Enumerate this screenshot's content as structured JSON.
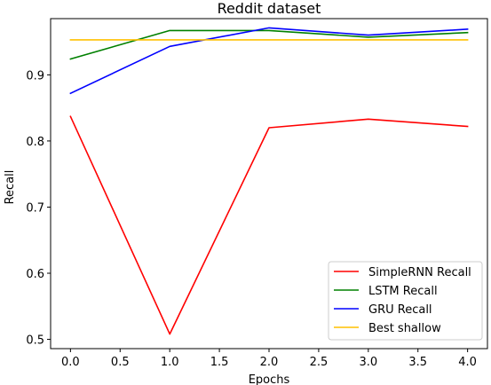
{
  "chart_data": {
    "type": "line",
    "title": "Reddit dataset",
    "xlabel": "Epochs",
    "ylabel": "Recall",
    "x": [
      0,
      1,
      2,
      3,
      4
    ],
    "xlim": [
      -0.2,
      4.2
    ],
    "ylim": [
      0.486,
      0.985
    ],
    "xticks": [
      "0.0",
      "0.5",
      "1.0",
      "1.5",
      "2.0",
      "2.5",
      "3.0",
      "3.5",
      "4.0"
    ],
    "yticks": [
      "0.5",
      "0.6",
      "0.7",
      "0.8",
      "0.9"
    ],
    "grid": false,
    "legend_position": "lower right",
    "series": [
      {
        "name": "SimpleRNN Recall",
        "color": "#ff0000",
        "values": [
          0.837,
          0.508,
          0.82,
          0.833,
          0.822
        ]
      },
      {
        "name": "LSTM Recall",
        "color": "#008000",
        "values": [
          0.924,
          0.967,
          0.967,
          0.957,
          0.964
        ]
      },
      {
        "name": "GRU Recall",
        "color": "#0000ff",
        "values": [
          0.872,
          0.943,
          0.971,
          0.96,
          0.969
        ]
      },
      {
        "name": "Best shallow",
        "color": "#ffc000",
        "values": [
          0.953,
          0.953,
          0.953,
          0.953,
          0.953
        ]
      }
    ]
  }
}
